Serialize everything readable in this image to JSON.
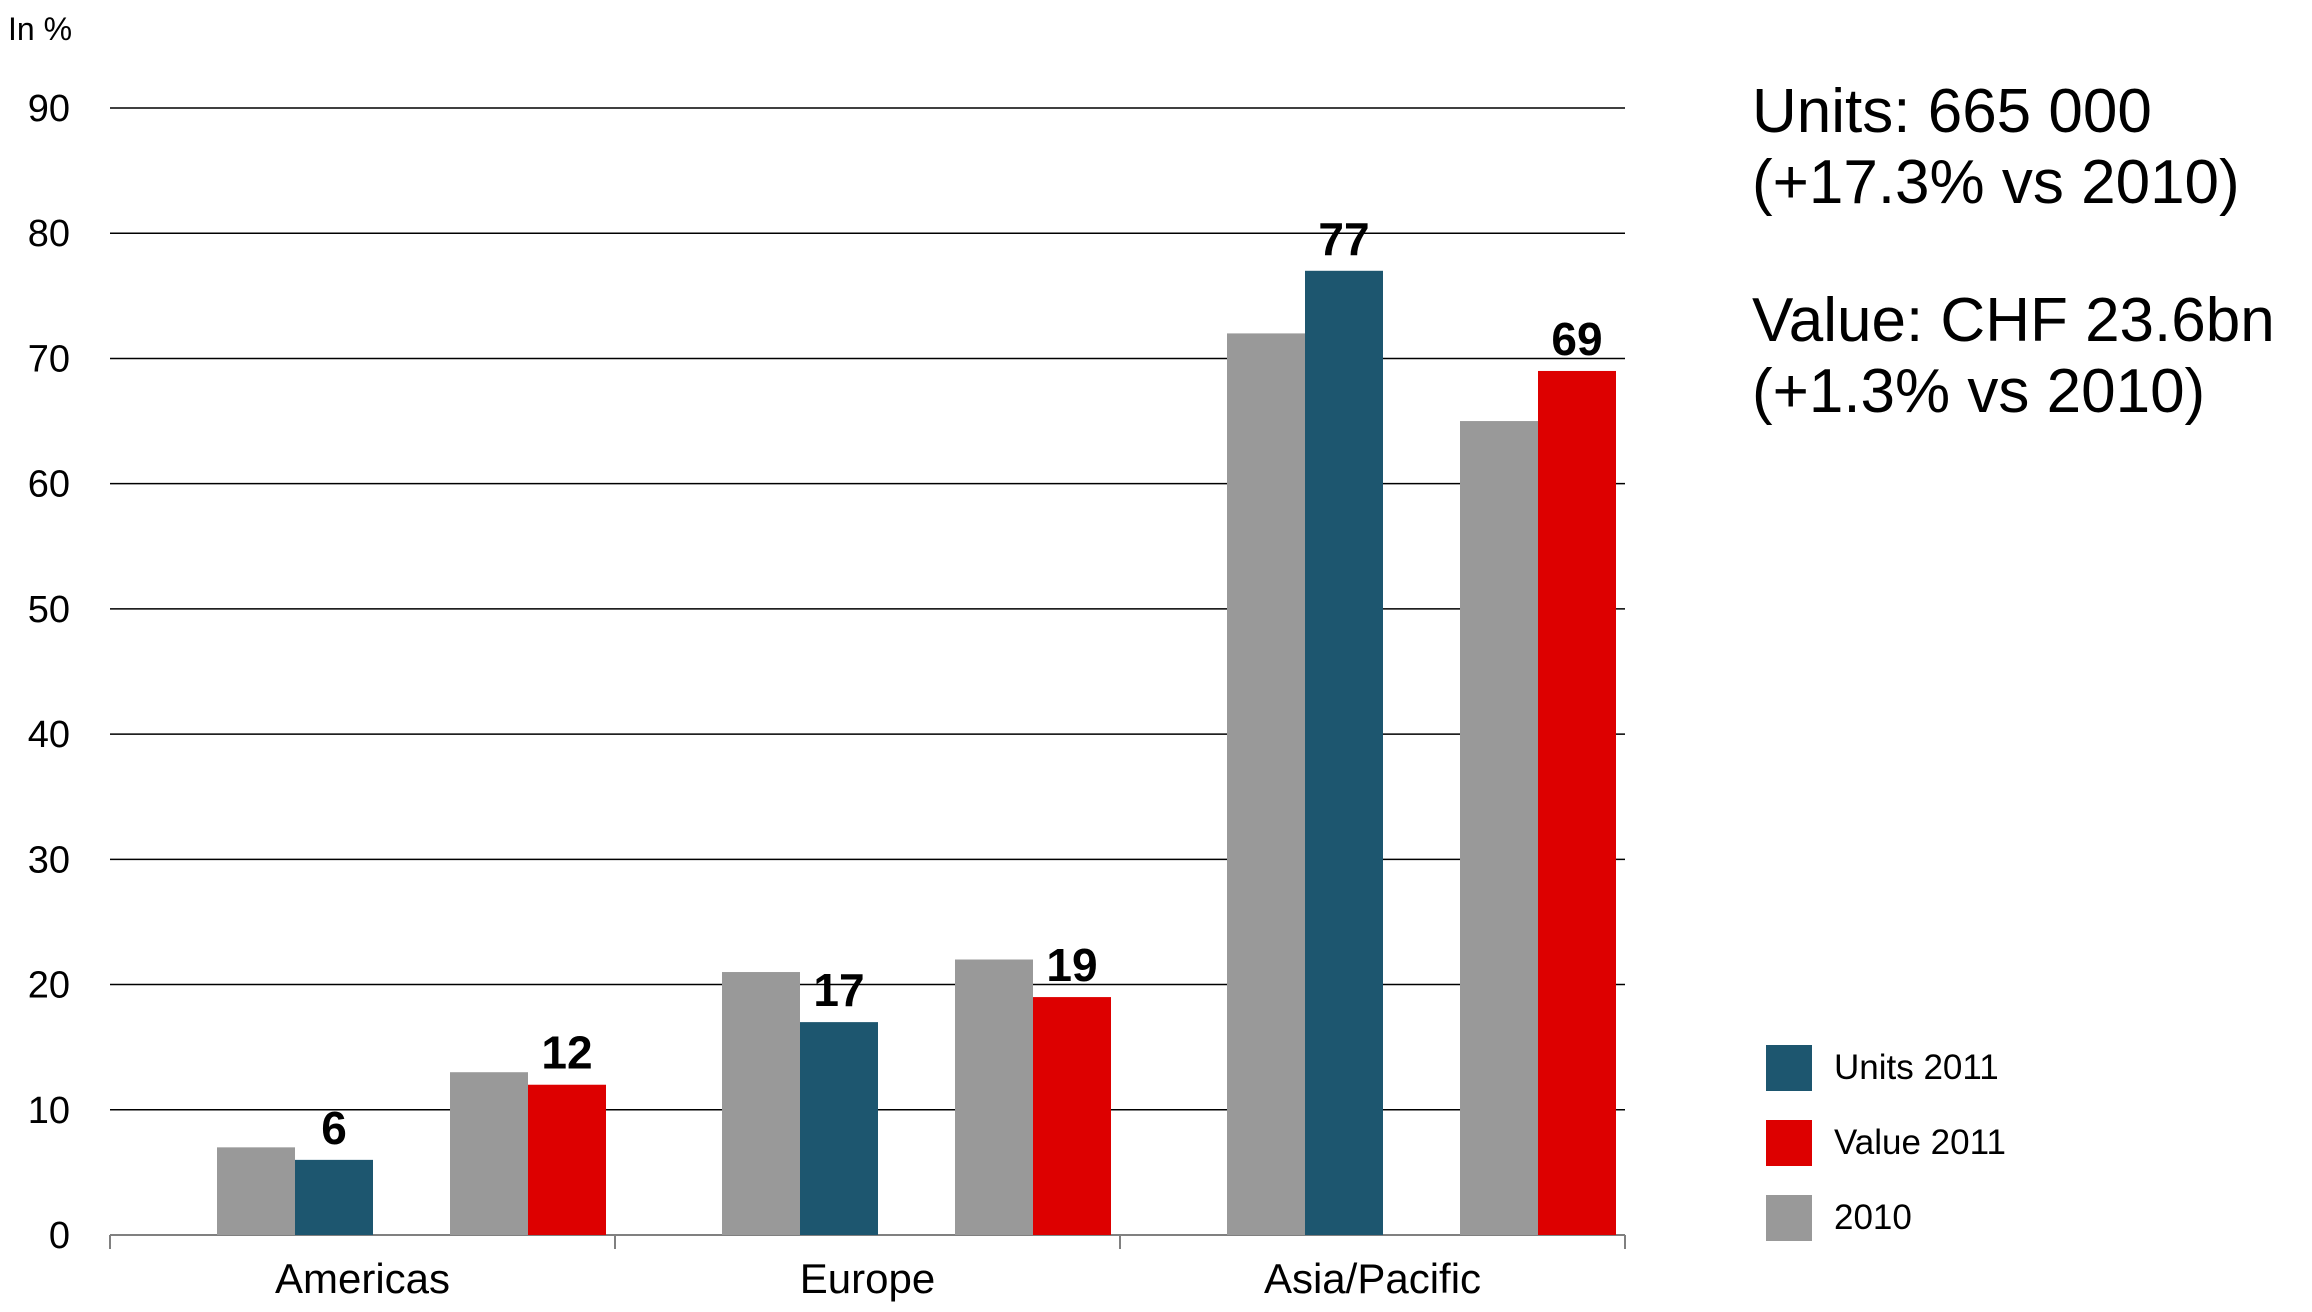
{
  "chart_data": {
    "type": "bar",
    "unit_label": "In %",
    "categories": [
      "Americas",
      "Europe",
      "Asia/Pacific"
    ],
    "ylim": [
      0,
      90
    ],
    "yticks": [
      0,
      10,
      20,
      30,
      40,
      50,
      60,
      70,
      80,
      90
    ],
    "grid": true,
    "groups": [
      {
        "category": "Americas",
        "pairs": [
          {
            "metric": "Units",
            "prev": 7,
            "curr": 6,
            "curr_label": "6"
          },
          {
            "metric": "Value",
            "prev": 13,
            "curr": 12,
            "curr_label": "12"
          }
        ]
      },
      {
        "category": "Europe",
        "pairs": [
          {
            "metric": "Units",
            "prev": 21,
            "curr": 17,
            "curr_label": "17"
          },
          {
            "metric": "Value",
            "prev": 22,
            "curr": 19,
            "curr_label": "19"
          }
        ]
      },
      {
        "category": "Asia/Pacific",
        "pairs": [
          {
            "metric": "Units",
            "prev": 72,
            "curr": 77,
            "curr_label": "77"
          },
          {
            "metric": "Value",
            "prev": 65,
            "curr": 69,
            "curr_label": "69"
          }
        ]
      }
    ],
    "series": [
      {
        "name": "Units 2011",
        "color": "#1d566f",
        "values": [
          6,
          17,
          77
        ]
      },
      {
        "name": "Value 2011",
        "color": "#dd0000",
        "values": [
          12,
          19,
          69
        ]
      },
      {
        "name": "2010",
        "color": "#999999",
        "units_values": [
          7,
          21,
          72
        ],
        "value_values": [
          13,
          22,
          65
        ]
      }
    ],
    "legend": {
      "placement": "bottom-right",
      "items": [
        {
          "label": "Units 2011",
          "color": "#1d566f"
        },
        {
          "label": "Value 2011",
          "color": "#dd0000"
        },
        {
          "label": "2010",
          "color": "#999999"
        }
      ]
    }
  },
  "summary": {
    "units_line1": "Units:  665 000",
    "units_line2": "(+17.3% vs 2010)",
    "value_line1": "Value:  CHF 23.6bn",
    "value_line2": "(+1.3% vs 2010)"
  }
}
